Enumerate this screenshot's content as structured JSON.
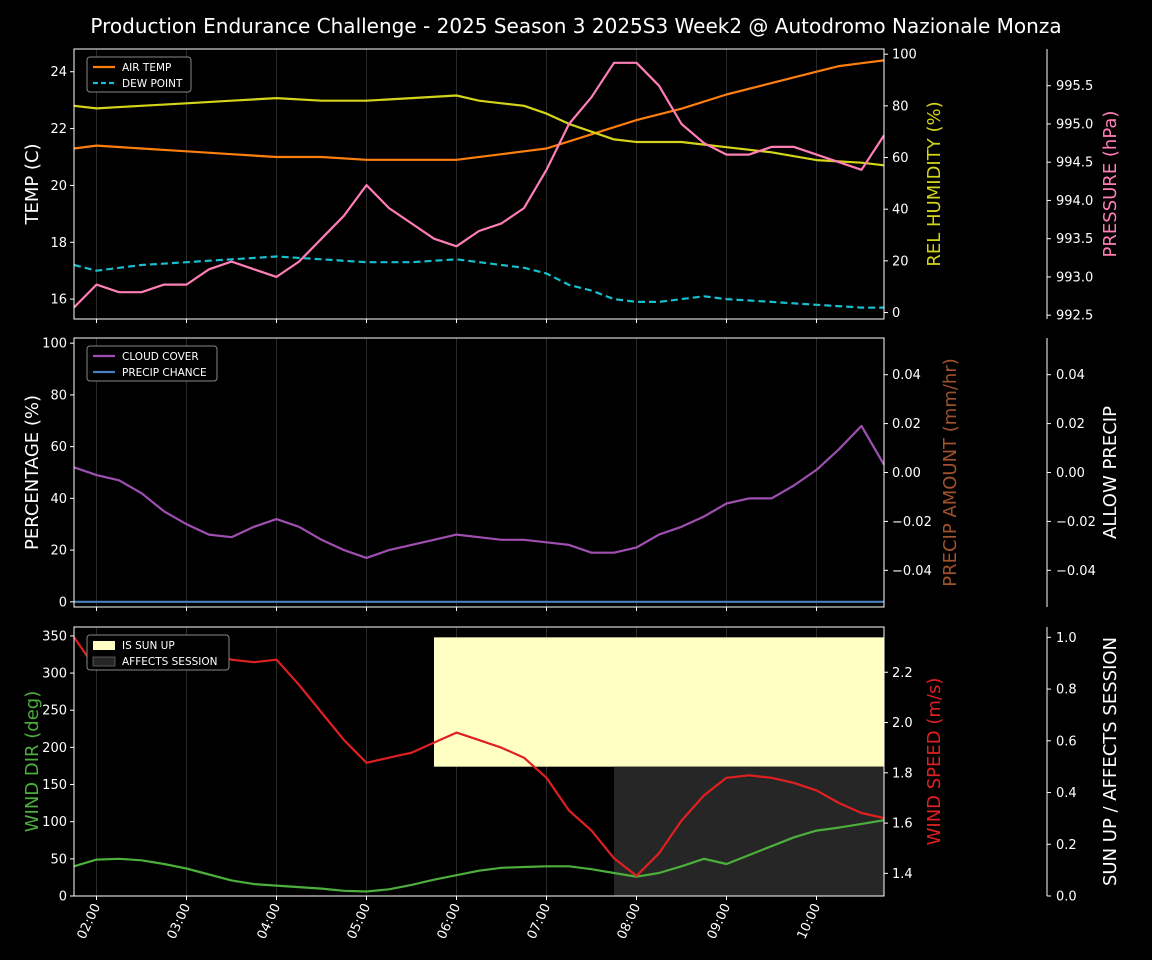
{
  "title": "Production Endurance Challenge - 2025 Season 3 2025S3 Week2 @ Autodromo Nazionale Monza",
  "colors": {
    "air_temp": "#ff7f0e",
    "dew_point": "#17becf",
    "humidity": "#d4d41a",
    "pressure": "#ff7eb6",
    "cloud": "#9e4fb0",
    "precip_chance": "#4a7fc0",
    "precip_amount_label": "#a0522d",
    "wind_dir": "#4caf3c",
    "wind_speed": "#e02020",
    "sun_up": "#ffffc4",
    "affects": "#262626"
  },
  "x_ticks": [
    "02:00",
    "03:00",
    "04:00",
    "05:00",
    "06:00",
    "07:00",
    "08:00",
    "09:00",
    "10:00"
  ],
  "chart_data": [
    {
      "type": "line",
      "name": "panel-1",
      "x_range": [
        1.75,
        10.75
      ],
      "ylabel_left": "TEMP (C)",
      "ylabel_right": "REL HUMIDITY (%)",
      "ylabel_right2": "PRESSURE (hPa)",
      "ylim_left": [
        15.3,
        24.8
      ],
      "ylim_right": [
        -2.5,
        102
      ],
      "ylim_right2": [
        992.45,
        995.98
      ],
      "yticks_left": [
        "16",
        "18",
        "20",
        "22",
        "24"
      ],
      "yticks_right": [
        "0",
        "20",
        "40",
        "60",
        "80",
        "100"
      ],
      "yticks_right2": [
        "992.5",
        "993.0",
        "993.5",
        "994.0",
        "994.5",
        "995.0",
        "995.5"
      ],
      "legend": [
        "AIR TEMP",
        "DEW POINT"
      ],
      "legend_position": "top-left",
      "series": [
        {
          "name": "AIR TEMP",
          "axis": "left",
          "style": "solid",
          "x": [
            1.75,
            2.0,
            2.5,
            3.0,
            3.5,
            4.0,
            4.5,
            5.0,
            5.5,
            5.75,
            6.0,
            6.5,
            6.75,
            7.0,
            7.5,
            8.0,
            8.5,
            9.0,
            9.5,
            10.0,
            10.25,
            10.5,
            10.75
          ],
          "y": [
            21.3,
            21.4,
            21.3,
            21.2,
            21.1,
            21.0,
            21.0,
            20.9,
            20.9,
            20.9,
            20.9,
            21.1,
            21.2,
            21.3,
            21.8,
            22.3,
            22.7,
            23.2,
            23.6,
            24.0,
            24.2,
            24.3,
            24.4
          ]
        },
        {
          "name": "DEW POINT",
          "axis": "left",
          "style": "dashed",
          "x": [
            1.75,
            2.0,
            2.5,
            3.0,
            3.5,
            4.0,
            4.5,
            5.0,
            5.5,
            6.0,
            6.5,
            6.75,
            7.0,
            7.25,
            7.5,
            7.75,
            8.0,
            8.25,
            8.5,
            8.75,
            9.0,
            9.5,
            10.0,
            10.5,
            10.75
          ],
          "y": [
            17.2,
            17.0,
            17.2,
            17.3,
            17.4,
            17.5,
            17.4,
            17.3,
            17.3,
            17.4,
            17.2,
            17.1,
            16.9,
            16.5,
            16.3,
            16.0,
            15.9,
            15.9,
            16.0,
            16.1,
            16.0,
            15.9,
            15.8,
            15.7,
            15.7
          ]
        },
        {
          "name": "REL HUMIDITY",
          "axis": "right",
          "style": "solid",
          "x": [
            1.75,
            2.0,
            2.5,
            3.0,
            3.5,
            4.0,
            4.5,
            5.0,
            5.5,
            6.0,
            6.25,
            6.5,
            6.75,
            7.0,
            7.25,
            7.5,
            7.75,
            8.0,
            8.25,
            8.5,
            8.75,
            9.0,
            9.5,
            10.0,
            10.5,
            10.75
          ],
          "y": [
            80,
            79,
            80,
            81,
            82,
            83,
            82,
            82,
            83,
            84,
            82,
            81,
            80,
            77,
            73,
            70,
            67,
            66,
            66,
            66,
            65,
            64,
            62,
            59,
            58,
            57
          ]
        },
        {
          "name": "PRESSURE",
          "axis": "right2",
          "style": "solid",
          "x": [
            1.75,
            2.0,
            2.25,
            2.5,
            2.75,
            3.0,
            3.25,
            3.5,
            3.75,
            4.0,
            4.25,
            4.5,
            4.75,
            5.0,
            5.25,
            5.5,
            5.75,
            6.0,
            6.25,
            6.5,
            6.75,
            7.0,
            7.25,
            7.5,
            7.75,
            8.0,
            8.25,
            8.5,
            8.75,
            9.0,
            9.25,
            9.5,
            9.75,
            10.0,
            10.25,
            10.5,
            10.75
          ],
          "y": [
            992.6,
            992.9,
            992.8,
            992.8,
            992.9,
            992.9,
            993.1,
            993.2,
            993.1,
            993.0,
            993.2,
            993.5,
            993.8,
            994.2,
            993.9,
            993.7,
            993.5,
            993.4,
            993.6,
            993.7,
            993.9,
            994.4,
            995.0,
            995.35,
            995.8,
            995.8,
            995.5,
            995.0,
            994.75,
            994.6,
            994.6,
            994.7,
            994.7,
            994.6,
            994.5,
            994.4,
            994.85
          ]
        }
      ]
    },
    {
      "type": "line",
      "name": "panel-2",
      "x_range": [
        1.75,
        10.75
      ],
      "ylabel_left": "PERCENTAGE (%)",
      "ylabel_right": "PRECIP AMOUNT (mm/hr)",
      "ylabel_right2": "ALLOW PRECIP",
      "ylim_left": [
        -2,
        102
      ],
      "ylim_right": [
        -0.055,
        0.055
      ],
      "ylim_right2": [
        -0.055,
        0.055
      ],
      "yticks_left": [
        "0",
        "20",
        "40",
        "60",
        "80",
        "100"
      ],
      "yticks_right": [
        "−0.04",
        "−0.02",
        "0.00",
        "0.02",
        "0.04"
      ],
      "yticks_right2": [
        "−0.04",
        "−0.02",
        "0.00",
        "0.02",
        "0.04"
      ],
      "legend": [
        "CLOUD COVER",
        "PRECIP CHANCE"
      ],
      "legend_position": "top-left",
      "series": [
        {
          "name": "CLOUD COVER",
          "axis": "left",
          "style": "solid",
          "x": [
            1.75,
            2.0,
            2.25,
            2.5,
            2.75,
            3.0,
            3.25,
            3.5,
            3.75,
            4.0,
            4.25,
            4.5,
            4.75,
            5.0,
            5.25,
            5.5,
            5.75,
            6.0,
            6.25,
            6.5,
            6.75,
            7.0,
            7.25,
            7.5,
            7.75,
            8.0,
            8.25,
            8.5,
            8.75,
            9.0,
            9.25,
            9.5,
            9.75,
            10.0,
            10.25,
            10.5,
            10.75
          ],
          "y": [
            52,
            49,
            47,
            42,
            35,
            30,
            26,
            25,
            29,
            32,
            29,
            24,
            20,
            17,
            20,
            22,
            24,
            26,
            25,
            24,
            24,
            23,
            22,
            19,
            19,
            21,
            26,
            29,
            33,
            38,
            40,
            40,
            45,
            51,
            59,
            68,
            53
          ]
        },
        {
          "name": "PRECIP CHANCE",
          "axis": "left",
          "style": "solid",
          "x": [
            1.75,
            10.75
          ],
          "y": [
            0,
            0
          ]
        }
      ]
    },
    {
      "type": "line",
      "name": "panel-3",
      "x_range": [
        1.75,
        10.75
      ],
      "ylabel_left": "WIND DIR (deg)",
      "ylabel_right": "WIND SPEED (m/s)",
      "ylabel_right2": "SUN UP / AFFECTS SESSION",
      "ylim_left": [
        0,
        362
      ],
      "ylim_right": [
        1.31,
        2.38
      ],
      "ylim_right2": [
        0,
        1.04
      ],
      "yticks_left": [
        "0",
        "50",
        "100",
        "150",
        "200",
        "250",
        "300",
        "350"
      ],
      "yticks_right": [
        "1.4",
        "1.6",
        "1.8",
        "2.0",
        "2.2"
      ],
      "yticks_right2": [
        "0.0",
        "0.2",
        "0.4",
        "0.6",
        "0.8",
        "1.0"
      ],
      "legend": [
        "IS SUN UP",
        "AFFECTS SESSION"
      ],
      "legend_position": "top-left",
      "sun_up": {
        "x_start": 5.75,
        "x_end": 10.75,
        "y_low": 0.5,
        "y_high": 1.0
      },
      "affects_session": {
        "x_start": 7.75,
        "x_end": 10.75,
        "y_low": 0.0,
        "y_high": 0.5
      },
      "series": [
        {
          "name": "WIND DIR",
          "axis": "left",
          "style": "solid",
          "x": [
            1.75,
            2.0,
            2.25,
            2.5,
            2.75,
            3.0,
            3.25,
            3.5,
            3.75,
            4.0,
            4.25,
            4.5,
            4.75,
            5.0,
            5.25,
            5.5,
            5.75,
            6.0,
            6.25,
            6.5,
            6.75,
            7.0,
            7.25,
            7.5,
            7.75,
            8.0,
            8.25,
            8.5,
            8.75,
            9.0,
            9.25,
            9.5,
            9.75,
            10.0,
            10.25,
            10.5,
            10.75
          ],
          "y": [
            40,
            49,
            50,
            48,
            43,
            37,
            29,
            21,
            16,
            14,
            12,
            10,
            7,
            6,
            9,
            15,
            22,
            28,
            34,
            38,
            39,
            40,
            40,
            36,
            31,
            26,
            31,
            40,
            50,
            43,
            55,
            67,
            79,
            88,
            92,
            97,
            102
          ]
        },
        {
          "name": "WIND SPEED",
          "axis": "right",
          "style": "solid",
          "x": [
            1.75,
            2.0,
            2.25,
            2.5,
            2.75,
            3.0,
            3.25,
            3.5,
            3.75,
            4.0,
            4.25,
            4.5,
            4.75,
            5.0,
            5.25,
            5.5,
            5.75,
            6.0,
            6.25,
            6.5,
            6.75,
            7.0,
            7.25,
            7.5,
            7.75,
            8.0,
            8.25,
            8.5,
            8.75,
            9.0,
            9.25,
            9.5,
            9.75,
            10.0,
            10.25,
            10.5,
            10.75
          ],
          "y": [
            2.34,
            2.21,
            2.25,
            2.27,
            2.29,
            2.32,
            2.28,
            2.25,
            2.24,
            2.25,
            2.15,
            2.04,
            1.93,
            1.84,
            1.86,
            1.88,
            1.92,
            1.96,
            1.93,
            1.9,
            1.86,
            1.78,
            1.65,
            1.57,
            1.46,
            1.39,
            1.48,
            1.61,
            1.71,
            1.78,
            1.79,
            1.78,
            1.76,
            1.73,
            1.68,
            1.64,
            1.62
          ]
        }
      ]
    }
  ]
}
